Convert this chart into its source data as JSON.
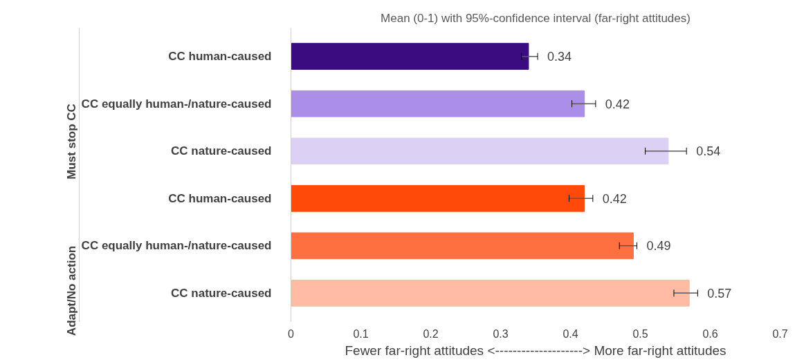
{
  "chart_data": {
    "type": "bar",
    "orientation": "horizontal",
    "title": "Mean (0-1) with 95%-confidence interval (far-right attitudes)",
    "xlabel": "Fewer far-right attitudes <--------------------> More far-right attitudes",
    "categories": [
      "CC human-caused",
      "CC equally human-/nature-caused",
      "CC nature-caused",
      "CC human-caused",
      "CC equally human-/nature-caused",
      "CC nature-caused"
    ],
    "values": [
      0.34,
      0.42,
      0.54,
      0.42,
      0.49,
      0.57
    ],
    "colors": [
      "#3b0c80",
      "#ab8ee8",
      "#dcd0f5",
      "#ff4a0a",
      "#ff7040",
      "#ffbba3"
    ],
    "errors": [
      [
        0.33,
        0.353
      ],
      [
        0.402,
        0.436
      ],
      [
        0.507,
        0.566
      ],
      [
        0.398,
        0.432
      ],
      [
        0.47,
        0.495
      ],
      [
        0.548,
        0.582
      ]
    ],
    "data_labels": true,
    "annotations": [
      "Must stop CC",
      "Adapt/No action"
    ],
    "xlim": [
      0,
      0.7
    ],
    "xticks": [
      0,
      0.1,
      0.2,
      0.3,
      0.4,
      0.5,
      0.6,
      0.7
    ],
    "grid": false
  }
}
